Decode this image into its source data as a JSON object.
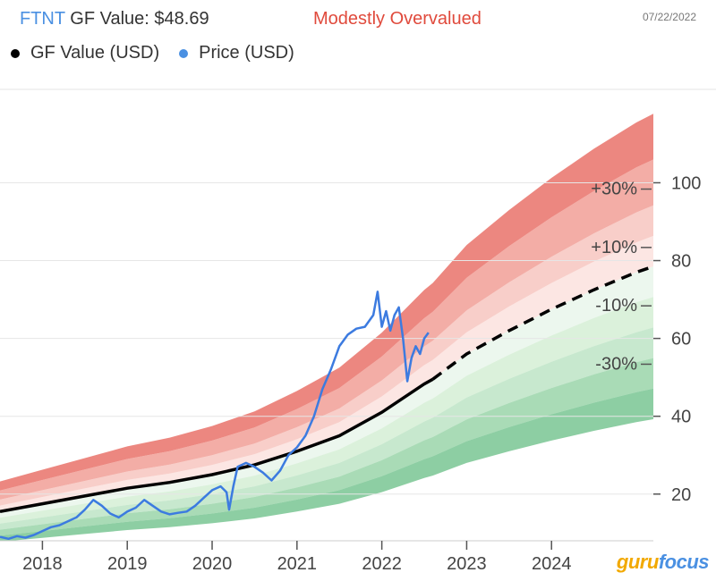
{
  "header": {
    "ticker": "FTNT",
    "gf_value_label": "GF Value: $48.69",
    "valuation": "Modestly Overvalued",
    "date": "07/22/2022"
  },
  "legend": {
    "gf_value": "GF Value (USD)",
    "price": "Price (USD)"
  },
  "logo": {
    "part1": "guru",
    "part2": "focus"
  },
  "colors": {
    "price": "#3c7be0",
    "gf_value": "#000000",
    "red_band": "#e9726a",
    "green_band": "#4caf6e",
    "valuation": "#e04a3c",
    "ticker": "#4a90e2"
  },
  "chart_data": {
    "type": "line",
    "title": "FTNT GF Value: $48.69",
    "ylim": [
      8,
      124
    ],
    "xlim": [
      2017.5,
      2025.2
    ],
    "x_ticks": [
      2018,
      2019,
      2020,
      2021,
      2022,
      2023,
      2024
    ],
    "y_ticks": [
      20,
      40,
      60,
      80,
      100
    ],
    "band_labels": [
      {
        "text": "+30%",
        "y": 97
      },
      {
        "text": "+10%",
        "y": 82
      },
      {
        "text": "-10%",
        "y": 67
      },
      {
        "text": "-30%",
        "y": 52
      }
    ],
    "gf_value": {
      "name": "GF Value (USD)",
      "x": [
        2017.5,
        2018,
        2018.5,
        2019,
        2019.5,
        2020,
        2020.5,
        2021,
        2021.5,
        2022,
        2022.5,
        2022.6,
        2023,
        2023.5,
        2024,
        2024.5,
        2025,
        2025.2
      ],
      "y": [
        15.5,
        17.5,
        19.5,
        21.5,
        23,
        25,
        27.5,
        31,
        35,
        41,
        48.3,
        49.5,
        56,
        62,
        67.5,
        72.5,
        77,
        78.5
      ]
    },
    "band_multipliers": [
      1.5,
      1.35,
      1.2,
      1.1,
      1.0,
      0.9,
      0.8,
      0.7,
      0.6,
      0.5
    ],
    "price": {
      "name": "Price (USD)",
      "x": [
        2017.5,
        2017.6,
        2017.7,
        2017.8,
        2017.9,
        2018.0,
        2018.1,
        2018.2,
        2018.3,
        2018.4,
        2018.5,
        2018.6,
        2018.7,
        2018.8,
        2018.9,
        2019.0,
        2019.1,
        2019.2,
        2019.3,
        2019.4,
        2019.5,
        2019.6,
        2019.7,
        2019.8,
        2019.9,
        2020.0,
        2020.1,
        2020.17,
        2020.2,
        2020.25,
        2020.3,
        2020.4,
        2020.5,
        2020.6,
        2020.7,
        2020.8,
        2020.9,
        2021.0,
        2021.1,
        2021.2,
        2021.3,
        2021.4,
        2021.5,
        2021.6,
        2021.7,
        2021.8,
        2021.9,
        2021.95,
        2022.0,
        2022.05,
        2022.1,
        2022.15,
        2022.2,
        2022.25,
        2022.3,
        2022.35,
        2022.4,
        2022.45,
        2022.5,
        2022.55
      ],
      "y": [
        9,
        8.5,
        9.2,
        8.8,
        9.5,
        10.5,
        11.5,
        12,
        13,
        14,
        16,
        18.5,
        17,
        15,
        14,
        15.5,
        16.5,
        18.5,
        17,
        15.5,
        14.8,
        15.2,
        15.5,
        17,
        19,
        21,
        22,
        20.5,
        16,
        22,
        27,
        28,
        27,
        25.5,
        23.5,
        26,
        30,
        32,
        35,
        40,
        47,
        52,
        58,
        61,
        62.5,
        63,
        66,
        72,
        63,
        67,
        62,
        66,
        68,
        60,
        49,
        55,
        58,
        56,
        60,
        61.5
      ]
    }
  }
}
